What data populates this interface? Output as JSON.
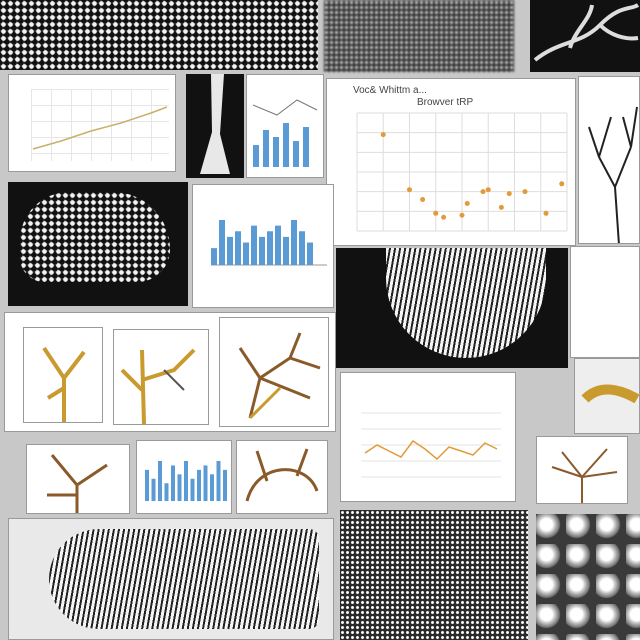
{
  "collage": {
    "main_chart_title_line1": "Voc& Whittm a...",
    "main_chart_title_line2": "Browver tRP"
  },
  "chart_data": [
    {
      "type": "scatter",
      "title": "Voc& Whittm a...",
      "subtitle": "Browver tRP",
      "x": [
        1,
        2,
        2.5,
        3,
        3.3,
        4,
        4.2,
        4.8,
        5,
        5.5,
        5.8,
        6.4,
        7.2,
        7.8
      ],
      "y": [
        4.9,
        2.1,
        1.6,
        0.9,
        0.7,
        0.8,
        1.4,
        2.0,
        2.1,
        1.2,
        1.9,
        2.0,
        0.9,
        2.4
      ],
      "xlim": [
        0,
        8
      ],
      "ylim": [
        0,
        6
      ],
      "grid": true,
      "xlabel": "",
      "ylabel": "",
      "color": "#e39a3a"
    },
    {
      "type": "bar",
      "values": [
        3,
        8,
        5,
        6,
        4,
        7,
        5,
        6,
        7,
        5,
        8,
        6,
        4
      ],
      "color": "#5b9bd5"
    },
    {
      "type": "line",
      "values": [
        5,
        5.4,
        5.1,
        4.8,
        5.6,
        5.2,
        4.7,
        5.3,
        5.1,
        4.9,
        5.5,
        5.2
      ],
      "color": "#e39a3a"
    },
    {
      "type": "bar",
      "values": [
        7,
        5,
        9,
        4,
        8,
        6,
        9,
        5,
        7,
        8,
        6,
        9,
        7
      ],
      "color": "#5b9bd5"
    }
  ],
  "colors": {
    "accent_orange": "#e39a3a",
    "accent_blue": "#5b9bd5",
    "branch_brown": "#8a5a2a",
    "branch_gold": "#c99a2e"
  }
}
